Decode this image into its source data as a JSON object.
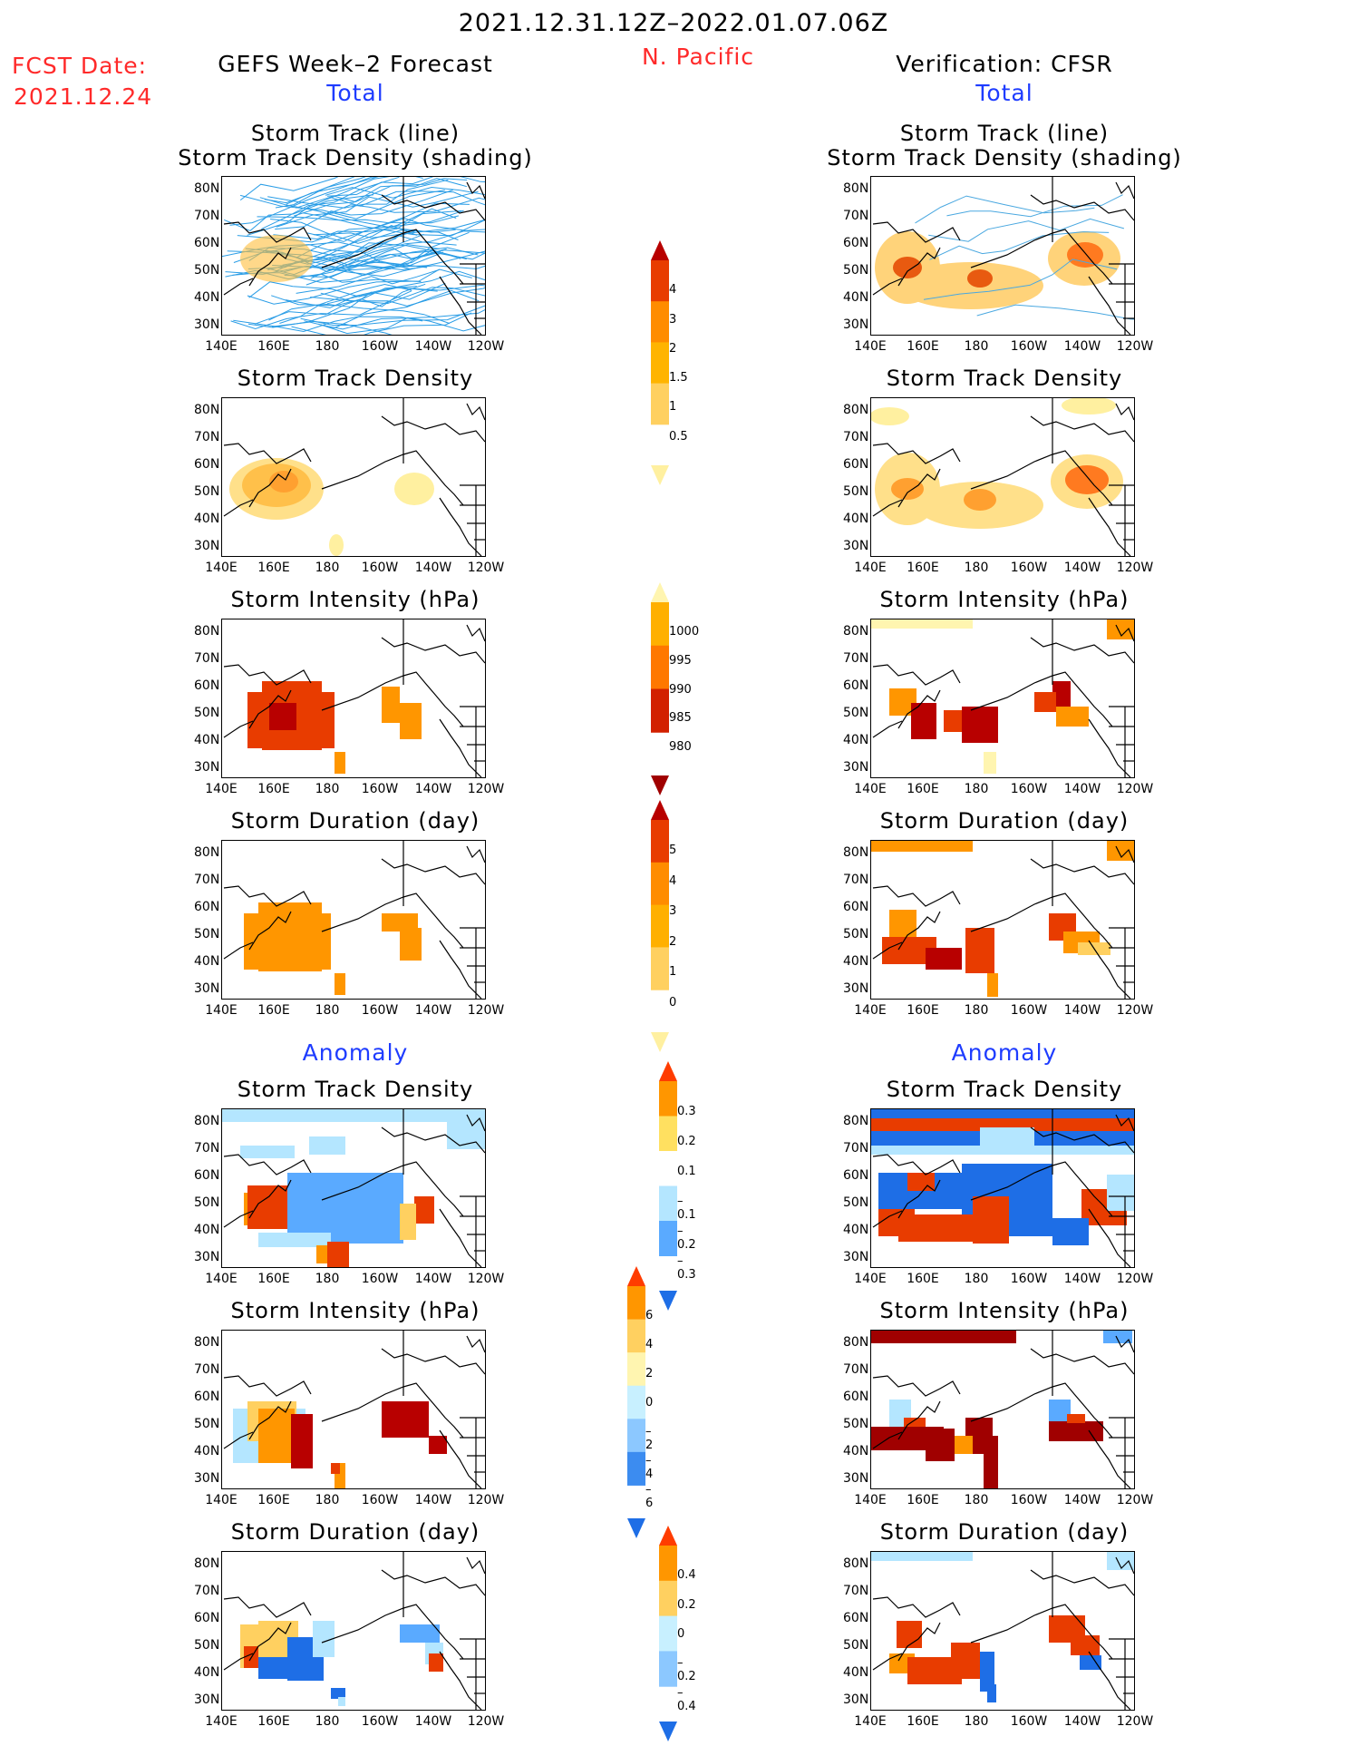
{
  "header": {
    "date_range": "2021.12.31.12Z–2022.01.07.06Z",
    "fcst_label": "FCST Date:",
    "fcst_date": "2021.12.24",
    "region": "N. Pacific",
    "left_title": "GEFS Week–2 Forecast",
    "right_title": "Verification: CFSR",
    "left_sub": "Total",
    "right_sub": "Total",
    "anomaly_left": "Anomaly",
    "anomaly_right": "Anomaly"
  },
  "axes": {
    "lat_labels": [
      "80N",
      "70N",
      "60N",
      "50N",
      "40N",
      "30N"
    ],
    "lon_labels": [
      "140E",
      "160E",
      "180",
      "160W",
      "140W",
      "120W"
    ]
  },
  "panels": {
    "left": [
      {
        "title1": "Storm Track (line)",
        "title2": "Storm Track Density (shading)"
      },
      {
        "title1": "Storm Track Density"
      },
      {
        "title1": "Storm Intensity (hPa)"
      },
      {
        "title1": "Storm Duration (day)"
      },
      {
        "title1": "Storm Track Density"
      },
      {
        "title1": "Storm Intensity (hPa)"
      },
      {
        "title1": "Storm Duration (day)"
      }
    ],
    "right": [
      {
        "title1": "Storm Track (line)",
        "title2": "Storm Track Density (shading)"
      },
      {
        "title1": "Storm Track Density"
      },
      {
        "title1": "Storm Intensity (hPa)"
      },
      {
        "title1": "Storm Duration (day)"
      },
      {
        "title1": "Storm Track Density"
      },
      {
        "title1": "Storm Intensity (hPa)"
      },
      {
        "title1": "Storm Duration (day)"
      }
    ]
  },
  "colorbars": {
    "density": {
      "labels": [
        "4",
        "3",
        "2",
        "1.5",
        "1",
        "0.5"
      ],
      "colors": [
        "#b80000",
        "#e83c00",
        "#ff8c00",
        "#ffb400",
        "#ffd060",
        "#fff0a0"
      ]
    },
    "intensity": {
      "labels": [
        "1000",
        "995",
        "990",
        "985",
        "980"
      ],
      "colors": [
        "#fff5b0",
        "#ffb000",
        "#ff7800",
        "#d22000",
        "#a00000"
      ]
    },
    "duration": {
      "labels": [
        "5",
        "4",
        "3",
        "2",
        "1",
        "0"
      ],
      "colors": [
        "#b80000",
        "#e83c00",
        "#ff8c00",
        "#ffb000",
        "#ffd060",
        "#fff0a0"
      ]
    },
    "anom_density": {
      "labels": [
        "0.3",
        "0.2",
        "0.1",
        "–0.1",
        "–0.2",
        "–0.3"
      ],
      "colors": [
        "#ff3c00",
        "#ff9600",
        "#ffe060",
        "#ffffff",
        "#b4e6ff",
        "#5aaaff",
        "#1e6ee6"
      ]
    },
    "anom_intensity": {
      "labels": [
        "6",
        "4",
        "2",
        "0",
        "–2",
        "–4",
        "–6"
      ],
      "colors": [
        "#ff3c00",
        "#ff9600",
        "#ffd060",
        "#fff5b0",
        "#c8f0ff",
        "#8cc8ff",
        "#3c8cf0",
        "#1e6ee6"
      ]
    },
    "anom_duration": {
      "labels": [
        "0.4",
        "0.2",
        "0",
        "–0.2",
        "–0.4"
      ],
      "colors": [
        "#ff3c00",
        "#ff9600",
        "#ffd060",
        "#c8f0ff",
        "#8cc8ff",
        "#1e6ee6"
      ]
    }
  }
}
